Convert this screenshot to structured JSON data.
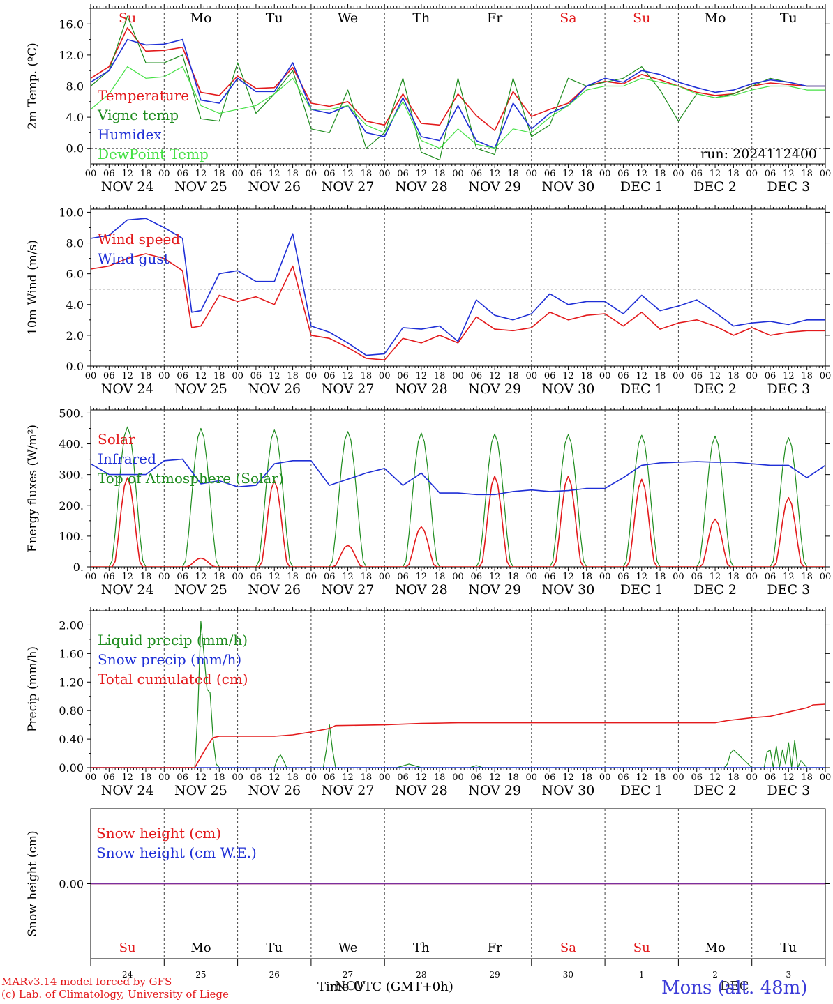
{
  "colors": {
    "red": "#e31a1c",
    "green": "#1e8c1e",
    "blue": "#1f2fd6",
    "lightgreen": "#44e044",
    "purple": "#7a2f9e",
    "axis": "#000000"
  },
  "days": {
    "abbr": [
      "Su",
      "Mo",
      "Tu",
      "We",
      "Th",
      "Fr",
      "Sa",
      "Su",
      "Mo",
      "Tu"
    ],
    "weekend": [
      true,
      false,
      false,
      false,
      false,
      false,
      true,
      true,
      false,
      false
    ],
    "dates": [
      "NOV 24",
      "NOV 25",
      "NOV 26",
      "NOV 27",
      "NOV 28",
      "NOV 29",
      "NOV 30",
      "DEC  1",
      "DEC  2",
      "DEC  3"
    ],
    "day_numbers": [
      "24",
      "25",
      "26",
      "27",
      "28",
      "29",
      "30",
      "1",
      "2",
      "3"
    ],
    "hour_ticks": [
      "00",
      "06",
      "12",
      "18"
    ],
    "final_tick": "00"
  },
  "run_label": "run: 2024112400",
  "footer": {
    "model_line": "MARv3.14 model forced by GFS",
    "credit_line": "(c) Lab. of Climatology, University of Liege",
    "time_label": "Time UTC (GMT+0h)",
    "month_overlay": "NOV",
    "month_overlay_right": "DEC",
    "station": "Mons (alt. 48m)"
  },
  "chart_data": [
    {
      "type": "line",
      "ylabel": "2m Temp. (ºC)",
      "ylim": [
        -2,
        18
      ],
      "yticks": [
        "0.0",
        "4.0",
        "8.0",
        "12.0",
        "16.0"
      ],
      "ytick_values": [
        0,
        4,
        8,
        12,
        16
      ],
      "reference_line": 0,
      "x_unit": "hours since 2024-11-24 00 UTC",
      "series": [
        {
          "name": "Temperature",
          "color": "red",
          "x": [
            0,
            6,
            12,
            18,
            24,
            30,
            36,
            42,
            48,
            54,
            60,
            66,
            72,
            78,
            84,
            90,
            96,
            102,
            108,
            114,
            120,
            126,
            132,
            138,
            144,
            150,
            156,
            162,
            168,
            174,
            180,
            186,
            192,
            198,
            204,
            210,
            216,
            222,
            228,
            234,
            240
          ],
          "y": [
            9.0,
            10.5,
            15.5,
            12.5,
            12.6,
            13.0,
            7.2,
            6.8,
            9.3,
            7.7,
            7.8,
            10.4,
            5.8,
            5.4,
            6.0,
            3.5,
            3.0,
            7.0,
            3.2,
            3.0,
            7.0,
            4.2,
            2.3,
            7.3,
            4.1,
            5.0,
            5.8,
            8.0,
            8.6,
            8.3,
            9.5,
            8.8,
            8.0,
            7.2,
            6.8,
            7.0,
            8.0,
            8.4,
            8.2,
            8.0,
            8.0
          ]
        },
        {
          "name": "Vigne temp",
          "color": "green",
          "x": [
            0,
            6,
            12,
            18,
            24,
            30,
            36,
            42,
            48,
            54,
            60,
            66,
            72,
            78,
            84,
            90,
            96,
            102,
            108,
            114,
            120,
            126,
            132,
            138,
            144,
            150,
            156,
            162,
            168,
            174,
            180,
            186,
            192,
            198,
            204,
            210,
            216,
            222,
            228,
            234,
            240
          ],
          "y": [
            8.0,
            10.0,
            17.0,
            11.0,
            11.0,
            12.0,
            3.8,
            3.5,
            11.0,
            4.5,
            7.0,
            10.0,
            2.5,
            2.0,
            7.5,
            0.0,
            2.0,
            9.0,
            -0.5,
            -1.5,
            9.0,
            0.0,
            -0.8,
            9.0,
            1.5,
            3.0,
            9.0,
            8.0,
            8.5,
            9.0,
            10.5,
            7.5,
            3.5,
            7.0,
            6.5,
            7.0,
            8.0,
            9.0,
            8.5,
            8.0,
            8.0
          ]
        },
        {
          "name": "Humidex",
          "color": "blue",
          "x": [
            0,
            6,
            12,
            18,
            24,
            30,
            36,
            42,
            48,
            54,
            60,
            66,
            72,
            78,
            84,
            90,
            96,
            102,
            108,
            114,
            120,
            126,
            132,
            138,
            144,
            150,
            156,
            162,
            168,
            174,
            180,
            186,
            192,
            198,
            204,
            210,
            216,
            222,
            228,
            234,
            240
          ],
          "y": [
            8.5,
            10.0,
            14.0,
            13.3,
            13.4,
            14.0,
            6.2,
            5.8,
            9.0,
            7.3,
            7.3,
            11.0,
            5.0,
            4.5,
            5.5,
            2.0,
            1.5,
            6.5,
            1.5,
            1.0,
            5.5,
            1.0,
            0.0,
            5.8,
            2.5,
            4.5,
            5.5,
            8.0,
            9.0,
            8.5,
            10.0,
            9.5,
            8.5,
            7.8,
            7.2,
            7.5,
            8.3,
            8.8,
            8.5,
            8.0,
            8.0
          ]
        },
        {
          "name": "DewPoint Temp",
          "color": "lightgreen",
          "x": [
            0,
            6,
            12,
            18,
            24,
            30,
            36,
            42,
            48,
            54,
            60,
            66,
            72,
            78,
            84,
            90,
            96,
            102,
            108,
            114,
            120,
            126,
            132,
            138,
            144,
            150,
            156,
            162,
            168,
            174,
            180,
            186,
            192,
            198,
            204,
            210,
            216,
            222,
            228,
            234,
            240
          ],
          "y": [
            5.0,
            7.0,
            10.5,
            9.0,
            9.2,
            10.5,
            5.5,
            4.5,
            5.0,
            5.5,
            7.0,
            9.0,
            5.0,
            5.0,
            5.5,
            3.0,
            2.0,
            6.0,
            1.0,
            0.0,
            2.5,
            0.5,
            0.0,
            2.5,
            2.0,
            4.0,
            5.5,
            7.5,
            8.0,
            8.0,
            9.0,
            8.5,
            8.0,
            7.0,
            6.5,
            6.8,
            7.5,
            8.0,
            8.0,
            7.5,
            7.5
          ]
        }
      ]
    },
    {
      "type": "line",
      "ylabel": "10m Wind (m/s)",
      "ylim": [
        0,
        10
      ],
      "yticks": [
        "0.0",
        "2.0",
        "4.0",
        "6.0",
        "8.0",
        "10.0"
      ],
      "ytick_values": [
        0,
        2,
        4,
        6,
        8,
        10
      ],
      "reference_line": 5,
      "x_unit": "hours since 2024-11-24 00 UTC",
      "series": [
        {
          "name": "Wind speed",
          "color": "red",
          "x": [
            0,
            6,
            12,
            18,
            24,
            30,
            33,
            36,
            42,
            48,
            54,
            60,
            66,
            72,
            78,
            84,
            90,
            96,
            102,
            108,
            114,
            120,
            126,
            132,
            138,
            144,
            150,
            156,
            162,
            168,
            174,
            180,
            186,
            192,
            198,
            204,
            210,
            216,
            222,
            228,
            234,
            240
          ],
          "y": [
            6.3,
            6.5,
            7.0,
            7.3,
            7.0,
            6.2,
            2.5,
            2.6,
            4.6,
            4.2,
            4.5,
            4.0,
            6.5,
            2.0,
            1.8,
            1.2,
            0.5,
            0.4,
            1.8,
            1.5,
            2.0,
            1.5,
            3.2,
            2.4,
            2.3,
            2.5,
            3.5,
            3.0,
            3.3,
            3.4,
            2.6,
            3.5,
            2.4,
            2.8,
            3.0,
            2.6,
            2.0,
            2.5,
            2.0,
            2.2,
            2.3,
            2.3
          ]
        },
        {
          "name": "Wind gust",
          "color": "blue",
          "x": [
            0,
            6,
            12,
            18,
            24,
            30,
            33,
            36,
            42,
            48,
            54,
            60,
            66,
            72,
            78,
            84,
            90,
            96,
            102,
            108,
            114,
            120,
            126,
            132,
            138,
            144,
            150,
            156,
            162,
            168,
            174,
            180,
            186,
            192,
            198,
            204,
            210,
            216,
            222,
            228,
            234,
            240
          ],
          "y": [
            8.3,
            8.5,
            9.5,
            9.6,
            9.0,
            8.3,
            3.5,
            3.6,
            6.0,
            6.2,
            5.5,
            5.5,
            8.6,
            2.6,
            2.2,
            1.5,
            0.7,
            0.8,
            2.5,
            2.4,
            2.6,
            1.6,
            4.3,
            3.3,
            3.0,
            3.4,
            4.7,
            4.0,
            4.2,
            4.2,
            3.4,
            4.6,
            3.6,
            3.9,
            4.3,
            3.5,
            2.6,
            2.8,
            2.9,
            2.7,
            3.0,
            3.0
          ]
        }
      ]
    },
    {
      "type": "line",
      "ylabel": "Energy fluxes (W/m²)",
      "ylim": [
        0,
        500
      ],
      "yticks": [
        "0.",
        "100.",
        "200.",
        "300.",
        "400.",
        "500."
      ],
      "ytick_values": [
        0,
        100,
        200,
        300,
        400,
        500
      ],
      "x_unit": "hours since 2024-11-24 00 UTC",
      "solar_peaks": [
        290,
        28,
        280,
        70,
        130,
        295,
        295,
        285,
        155,
        225
      ],
      "toa_peaks": [
        455,
        450,
        445,
        440,
        435,
        432,
        430,
        428,
        425,
        420
      ],
      "series": [
        {
          "name": "Solar",
          "color": "red"
        },
        {
          "name": "Infrared",
          "color": "blue",
          "x": [
            0,
            6,
            12,
            18,
            24,
            30,
            36,
            42,
            48,
            54,
            60,
            66,
            72,
            78,
            84,
            90,
            96,
            102,
            108,
            114,
            120,
            126,
            132,
            138,
            144,
            150,
            156,
            162,
            168,
            174,
            180,
            186,
            192,
            198,
            204,
            210,
            216,
            222,
            228,
            234,
            240
          ],
          "y": [
            335,
            300,
            300,
            300,
            345,
            350,
            270,
            280,
            260,
            265,
            335,
            345,
            345,
            265,
            285,
            305,
            320,
            265,
            305,
            240,
            240,
            235,
            235,
            245,
            250,
            245,
            248,
            255,
            255,
            290,
            330,
            338,
            340,
            342,
            340,
            340,
            335,
            330,
            330,
            290,
            330
          ]
        },
        {
          "name": "Top of Atmosphere (Solar)",
          "color": "green"
        }
      ]
    },
    {
      "type": "line",
      "ylabel": "Precip (mm/h)",
      "ylim": [
        0,
        2.2
      ],
      "yticks": [
        "0.00",
        "0.40",
        "0.80",
        "1.20",
        "1.60",
        "2.00"
      ],
      "ytick_values": [
        0,
        0.4,
        0.8,
        1.2,
        1.6,
        2.0
      ],
      "x_unit": "hours since 2024-11-24 00 UTC",
      "series": [
        {
          "name": "Liquid precip (mm/h)",
          "color": "green",
          "x": [
            0,
            34,
            35,
            36,
            37,
            38,
            39,
            40,
            41,
            42,
            60,
            61,
            62,
            63,
            64,
            76,
            77,
            78,
            79,
            80,
            100,
            104,
            108,
            124,
            126,
            128,
            207,
            208,
            209,
            210,
            216,
            220,
            221,
            222,
            223,
            224,
            225,
            226,
            227,
            228,
            229,
            230,
            231,
            232,
            233,
            234,
            235,
            240
          ],
          "y": [
            0,
            0,
            0.8,
            2.05,
            1.6,
            1.1,
            1.05,
            0.4,
            0.05,
            0,
            0,
            0.12,
            0.18,
            0.1,
            0,
            0,
            0.25,
            0.6,
            0.25,
            0,
            0,
            0.05,
            0,
            0,
            0.03,
            0,
            0,
            0.05,
            0.2,
            0.25,
            0,
            0,
            0.22,
            0.25,
            0,
            0.3,
            0,
            0.25,
            0.05,
            0.35,
            0,
            0.38,
            0,
            0.1,
            0.05,
            0,
            0,
            0
          ]
        },
        {
          "name": "Snow precip (mm/h)",
          "color": "blue",
          "x": [
            0,
            240
          ],
          "y": [
            0,
            0
          ]
        },
        {
          "name": "Total cumulated (cm)",
          "color": "red",
          "x": [
            0,
            34,
            36,
            38,
            40,
            42,
            60,
            66,
            72,
            78,
            80,
            96,
            102,
            108,
            120,
            144,
            168,
            180,
            204,
            208,
            216,
            222,
            228,
            234,
            236,
            240
          ],
          "y": [
            0,
            0,
            0.15,
            0.3,
            0.42,
            0.44,
            0.44,
            0.46,
            0.5,
            0.55,
            0.59,
            0.6,
            0.61,
            0.62,
            0.63,
            0.63,
            0.63,
            0.63,
            0.63,
            0.66,
            0.7,
            0.72,
            0.78,
            0.84,
            0.88,
            0.89
          ]
        }
      ]
    },
    {
      "type": "line",
      "ylabel": "Snow height (cm)",
      "yticks": [
        "0.00"
      ],
      "ytick_values": [
        0
      ],
      "ylim": [
        -1,
        1
      ],
      "x_unit": "hours since 2024-11-24 00 UTC",
      "series": [
        {
          "name": "Snow height (cm)",
          "color": "red",
          "x": [
            0,
            240
          ],
          "y": [
            0,
            0
          ]
        },
        {
          "name": "Snow height (cm W.E.)",
          "color": "blue",
          "x": [
            0,
            240
          ],
          "y": [
            0,
            0
          ]
        }
      ]
    }
  ]
}
